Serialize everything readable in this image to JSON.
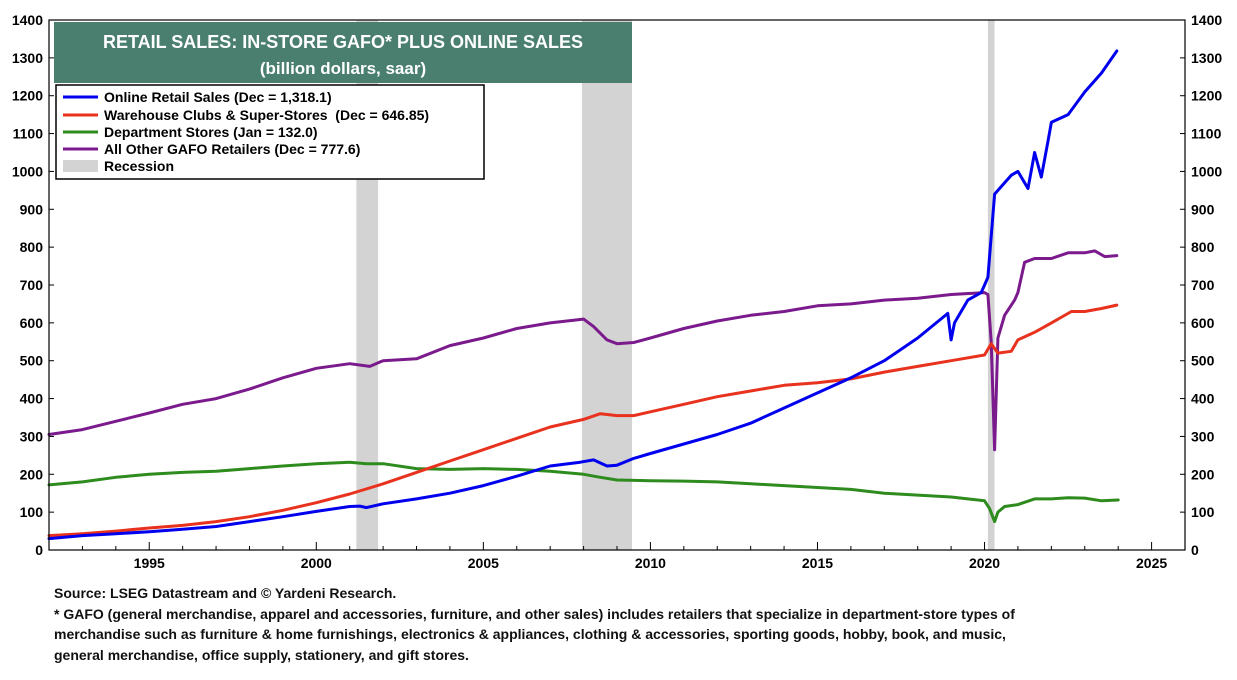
{
  "chart_data": {
    "type": "line",
    "title": "RETAIL SALES: IN-STORE GAFO* PLUS ONLINE SALES",
    "subtitle": "(billion dollars, saar)",
    "xlabel": "",
    "ylabel": "",
    "xlim": [
      1992.0,
      2026.0
    ],
    "ylim": [
      0,
      1400
    ],
    "x_ticks": [
      1995,
      2000,
      2005,
      2010,
      2015,
      2020,
      2025
    ],
    "x_tick_labels": [
      "1995",
      "2000",
      "2005",
      "2010",
      "2015",
      "2020",
      "2025"
    ],
    "y_ticks": [
      0,
      100,
      200,
      300,
      400,
      500,
      600,
      700,
      800,
      900,
      1000,
      1100,
      1200,
      1300,
      1400
    ],
    "y_tick_labels": [
      "0",
      "100",
      "200",
      "300",
      "400",
      "500",
      "600",
      "700",
      "800",
      "900",
      "1000",
      "1100",
      "1200",
      "1300",
      "1400"
    ],
    "grid": false,
    "legend_position": "top-left",
    "recession_label": "Recession",
    "recessions": [
      [
        2001.2,
        2001.85
      ],
      [
        2007.95,
        2009.45
      ],
      [
        2020.1,
        2020.3
      ]
    ],
    "series": [
      {
        "name": "Online Retail Sales (Dec = 1,318.1)",
        "color": "#0000ee",
        "x": [
          1992.0,
          1993.0,
          1994.0,
          1995.0,
          1996.0,
          1997.0,
          1998.0,
          1999.0,
          2000.0,
          2001.0,
          2001.3,
          2001.5,
          2001.8,
          2002.0,
          2003.0,
          2004.0,
          2005.0,
          2006.0,
          2007.0,
          2007.9,
          2008.3,
          2008.7,
          2009.0,
          2009.5,
          2010.0,
          2011.0,
          2012.0,
          2013.0,
          2014.0,
          2015.0,
          2016.0,
          2017.0,
          2018.0,
          2018.9,
          2019.0,
          2019.1,
          2019.5,
          2019.9,
          2020.1,
          2020.3,
          2020.5,
          2020.8,
          2021.0,
          2021.3,
          2021.5,
          2021.7,
          2021.9,
          2022.0,
          2022.5,
          2023.0,
          2023.5,
          2023.96
        ],
        "values": [
          30,
          38,
          43,
          48,
          55,
          62,
          75,
          88,
          102,
          115,
          116,
          112,
          118,
          122,
          135,
          150,
          170,
          195,
          222,
          232,
          238,
          222,
          224,
          242,
          255,
          280,
          305,
          335,
          375,
          415,
          455,
          500,
          560,
          625,
          555,
          600,
          660,
          680,
          720,
          940,
          960,
          990,
          1000,
          955,
          1050,
          985,
          1080,
          1130,
          1150,
          1210,
          1260,
          1318
        ]
      },
      {
        "name": "Warehouse Clubs & Super-Stores  (Dec = 646.85)",
        "color": "#e8321e",
        "x": [
          1992.0,
          1993.0,
          1994.0,
          1995.0,
          1996.0,
          1997.0,
          1998.0,
          1999.0,
          2000.0,
          2001.0,
          2002.0,
          2003.0,
          2004.0,
          2005.0,
          2006.0,
          2007.0,
          2008.0,
          2008.5,
          2009.0,
          2009.5,
          2010.0,
          2011.0,
          2012.0,
          2013.0,
          2014.0,
          2015.0,
          2016.0,
          2017.0,
          2018.0,
          2019.0,
          2020.0,
          2020.2,
          2020.4,
          2020.8,
          2021.0,
          2021.5,
          2022.0,
          2022.6,
          2023.0,
          2023.5,
          2023.96
        ],
        "values": [
          38,
          43,
          50,
          58,
          65,
          75,
          88,
          105,
          125,
          148,
          175,
          205,
          235,
          265,
          295,
          325,
          345,
          360,
          355,
          355,
          365,
          385,
          405,
          420,
          435,
          442,
          452,
          470,
          485,
          500,
          515,
          545,
          520,
          525,
          555,
          575,
          600,
          630,
          630,
          638,
          646.85
        ]
      },
      {
        "name": "Department Stores (Jan = 132.0)",
        "color": "#2e8b1e",
        "x": [
          1992.0,
          1993.0,
          1994.0,
          1995.0,
          1996.0,
          1997.0,
          1998.0,
          1999.0,
          2000.0,
          2001.0,
          2001.5,
          2002.0,
          2003.0,
          2004.0,
          2005.0,
          2006.0,
          2007.0,
          2008.0,
          2008.5,
          2009.0,
          2010.0,
          2011.0,
          2012.0,
          2013.0,
          2014.0,
          2015.0,
          2016.0,
          2017.0,
          2018.0,
          2019.0,
          2020.0,
          2020.15,
          2020.3,
          2020.4,
          2020.6,
          2021.0,
          2021.5,
          2022.0,
          2022.5,
          2023.0,
          2023.5,
          2024.0
        ],
        "values": [
          172,
          180,
          192,
          200,
          205,
          208,
          215,
          222,
          228,
          232,
          228,
          228,
          215,
          213,
          215,
          213,
          208,
          200,
          192,
          185,
          183,
          182,
          180,
          175,
          170,
          165,
          160,
          150,
          145,
          140,
          130,
          110,
          75,
          100,
          115,
          120,
          135,
          135,
          138,
          137,
          130,
          132
        ]
      },
      {
        "name": "All Other GAFO Retailers (Dec = 777.6)",
        "color": "#7a1a8c",
        "x": [
          1992.0,
          1993.0,
          1994.0,
          1995.0,
          1996.0,
          1997.0,
          1998.0,
          1999.0,
          2000.0,
          2001.0,
          2001.6,
          2002.0,
          2003.0,
          2004.0,
          2005.0,
          2006.0,
          2007.0,
          2008.0,
          2008.3,
          2008.7,
          2009.0,
          2009.5,
          2010.0,
          2011.0,
          2012.0,
          2013.0,
          2014.0,
          2015.0,
          2016.0,
          2017.0,
          2018.0,
          2019.0,
          2020.0,
          2020.1,
          2020.2,
          2020.3,
          2020.4,
          2020.6,
          2020.9,
          2021.0,
          2021.2,
          2021.5,
          2022.0,
          2022.5,
          2023.0,
          2023.3,
          2023.6,
          2023.96
        ],
        "values": [
          305,
          318,
          340,
          362,
          385,
          400,
          425,
          455,
          480,
          492,
          485,
          500,
          505,
          540,
          560,
          585,
          600,
          610,
          590,
          555,
          545,
          548,
          560,
          585,
          605,
          620,
          630,
          645,
          650,
          660,
          665,
          675,
          680,
          675,
          550,
          265,
          560,
          620,
          660,
          680,
          760,
          770,
          770,
          785,
          785,
          790,
          775,
          777.6
        ]
      }
    ]
  },
  "notes": {
    "source": "Source: LSEG Datastream and © Yardeni Research.",
    "gafo_line1": "* GAFO (general merchandise, apparel and accessories, furniture, and other sales) includes retailers that specialize in department-store types of",
    "gafo_line2": "merchandise such as furniture & home furnishings, electronics & appliances, clothing & accessories, sporting goods, hobby, book, and music,",
    "gafo_line3": "general merchandise, office supply, stationery, and gift stores."
  },
  "colors": {
    "title_bg": "#4a7f6f",
    "title_text": "#ffffff",
    "recession": "#d3d3d3"
  }
}
